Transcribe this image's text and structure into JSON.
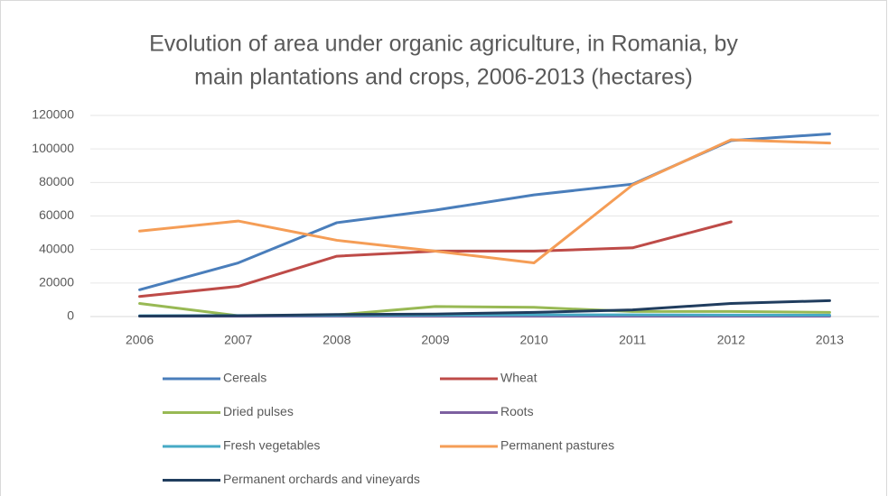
{
  "chart_data": {
    "type": "line",
    "title": [
      "Evolution of area under organic agriculture, in Romania, by",
      "main plantations and crops, 2006-2013 (hectares)"
    ],
    "categories": [
      "2006",
      "2007",
      "2008",
      "2009",
      "2010",
      "2011",
      "2012",
      "2013"
    ],
    "series": [
      {
        "name": "Cereals",
        "color": "#4a7ebb",
        "values": [
          16000,
          32000,
          56000,
          63500,
          72600,
          79000,
          105000,
          109000
        ]
      },
      {
        "name": "Wheat",
        "color": "#be4b48",
        "values": [
          12000,
          18000,
          36000,
          39000,
          39000,
          41000,
          56500,
          null
        ]
      },
      {
        "name": "Dried pulses",
        "color": "#98b954",
        "values": [
          7800,
          500,
          1000,
          6000,
          5500,
          3000,
          3000,
          2500
        ]
      },
      {
        "name": "Roots",
        "color": "#7d60a0",
        "values": [
          200,
          200,
          200,
          200,
          200,
          200,
          200,
          200
        ]
      },
      {
        "name": "Fresh vegetables",
        "color": "#46aac5",
        "values": [
          500,
          600,
          700,
          800,
          1000,
          1000,
          900,
          800
        ]
      },
      {
        "name": "Permanent pastures",
        "color": "#f59d56",
        "values": [
          51000,
          57000,
          45500,
          39000,
          32000,
          78500,
          105500,
          103500
        ]
      },
      {
        "name": "Permanent orchards and vineyards",
        "color": "#203d5e",
        "values": [
          300,
          500,
          1200,
          1500,
          2500,
          4000,
          7800,
          9500
        ]
      }
    ],
    "ylim": [
      0,
      120000
    ],
    "yticks": [
      0,
      20000,
      40000,
      60000,
      80000,
      100000,
      120000
    ],
    "grid": true,
    "legend": "bottom"
  }
}
